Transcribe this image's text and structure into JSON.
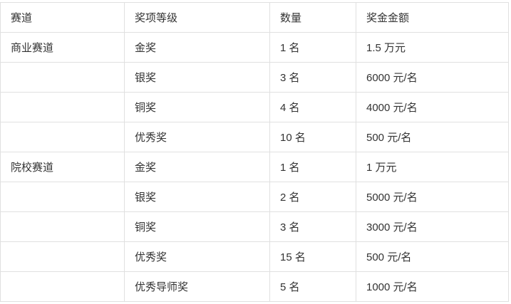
{
  "table": {
    "headers": [
      "赛道",
      "奖项等级",
      "数量",
      "奖金金额"
    ],
    "rows": [
      [
        "商业赛道",
        "金奖",
        "1 名",
        "1.5 万元"
      ],
      [
        "",
        "银奖",
        "3 名",
        "6000 元/名"
      ],
      [
        "",
        "铜奖",
        "4 名",
        "4000 元/名"
      ],
      [
        "",
        "优秀奖",
        "10 名",
        "500 元/名"
      ],
      [
        "院校赛道",
        "金奖",
        "1 名",
        "1 万元"
      ],
      [
        "",
        "银奖",
        "2 名",
        "5000 元/名"
      ],
      [
        "",
        "铜奖",
        "3 名",
        "3000 元/名"
      ],
      [
        "",
        "优秀奖",
        "15 名",
        "500 元/名"
      ],
      [
        "",
        "优秀导师奖",
        "5 名",
        "1000 元/名"
      ]
    ],
    "style": {
      "border_color": "#e0e0e0",
      "text_color": "#333333",
      "background_color": "#ffffff"
    }
  }
}
